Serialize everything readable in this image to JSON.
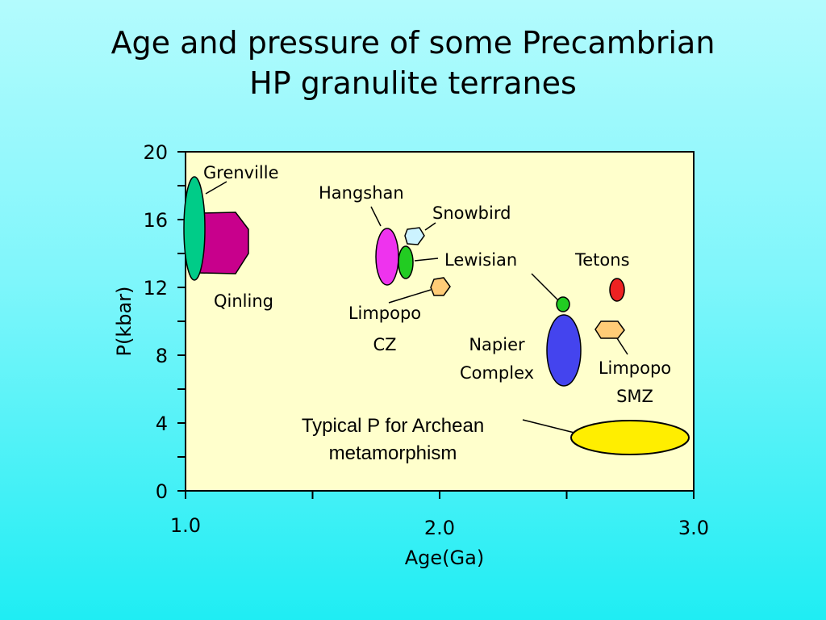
{
  "title": {
    "line1": "Age and pressure of some Precambrian",
    "line2": "HP granulite terranes"
  },
  "chart_data": {
    "type": "scatter",
    "title": "Age and pressure of some Precambrian HP granulite terranes",
    "xlabel": "Age(Ga)",
    "ylabel": "P(kbar)",
    "xlim": [
      1.0,
      3.0
    ],
    "ylim": [
      0,
      20
    ],
    "xticks": [
      1.0,
      1.5,
      2.0,
      2.5,
      3.0
    ],
    "xtick_labels": [
      "1.0",
      "",
      "2.0",
      "",
      "3.0"
    ],
    "yticks": [
      0,
      2,
      4,
      6,
      8,
      10,
      12,
      14,
      16,
      18,
      20
    ],
    "ytick_labels": [
      "0",
      "",
      "4",
      "",
      "8",
      "",
      "12",
      "",
      "16",
      "",
      "20"
    ],
    "grid": false,
    "plot_background": "#ffffcc",
    "regions": [
      {
        "key": "qinling",
        "label_lines": [
          "Qinling"
        ],
        "x_range": [
          1.05,
          1.25
        ],
        "p_range": [
          12.8,
          16.8
        ],
        "color": "#c8008c"
      },
      {
        "key": "grenville",
        "label_lines": [
          "Grenville"
        ],
        "x_range": [
          0.99,
          1.07
        ],
        "p_range": [
          12.5,
          18.5
        ],
        "color": "#00cc88"
      },
      {
        "key": "hangshan",
        "label_lines": [
          "Hangshan"
        ],
        "x_range": [
          1.74,
          1.83
        ],
        "p_range": [
          12.2,
          15.6
        ],
        "color": "#ee33ee"
      },
      {
        "key": "snowbird",
        "label_lines": [
          "Snowbird"
        ],
        "x_range": [
          1.84,
          1.91
        ],
        "p_range": [
          14.6,
          15.6
        ],
        "color": "#ccf3ff"
      },
      {
        "key": "lewisian",
        "label_lines": [
          "Lewisian"
        ],
        "x_range": [
          1.84,
          1.9
        ],
        "p_range": [
          12.6,
          14.6
        ],
        "color": "#22cc22"
      },
      {
        "key": "limpopo-cz",
        "label_lines": [
          "Limpopo",
          "CZ"
        ],
        "x_range": [
          1.96,
          2.04
        ],
        "p_range": [
          11.6,
          12.6
        ],
        "color": "#ffcc77"
      },
      {
        "key": "napier-complex",
        "label_lines": [
          "Napier",
          "Complex"
        ],
        "x_range": [
          2.43,
          2.57
        ],
        "p_range": [
          6.3,
          10.5
        ],
        "color": "#4444ee"
      },
      {
        "key": "napier-dot",
        "label_lines": [],
        "x_range": [
          2.47,
          2.53
        ],
        "p_range": [
          10.8,
          11.7
        ],
        "color": "#22cc22"
      },
      {
        "key": "tetons",
        "label_lines": [
          "Tetons"
        ],
        "x_range": [
          2.67,
          2.73
        ],
        "p_range": [
          11.2,
          12.5
        ],
        "color": "#ee2222"
      },
      {
        "key": "limpopo-smz",
        "label_lines": [
          "Limpopo",
          "SMZ"
        ],
        "x_range": [
          2.65,
          2.76
        ],
        "p_range": [
          9.3,
          10.3
        ],
        "color": "#ffcc77"
      },
      {
        "key": "archean",
        "label_lines": [
          "Typical P for Archean",
          "metamorphism"
        ],
        "x_range": [
          2.52,
          2.99
        ],
        "p_range": [
          2.2,
          4.2
        ],
        "color": "#ffee00"
      }
    ]
  }
}
